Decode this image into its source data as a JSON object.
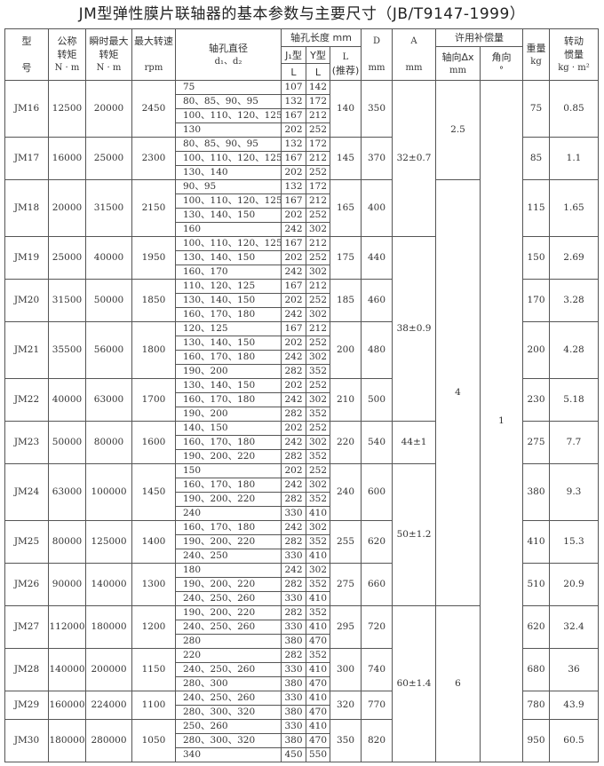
{
  "title": "JM型弹性膜片联轴器的基本参数与主要尺寸（JB/T9147-1999）",
  "header": {
    "model": [
      "型",
      "号"
    ],
    "torque": [
      "公称",
      "转矩",
      "N · m"
    ],
    "peak": [
      "瞬时最大",
      "转矩",
      "N · m"
    ],
    "speed": [
      "最大转速",
      "rpm"
    ],
    "bore": [
      "轴孔直径",
      "d₁、d₂"
    ],
    "length": "轴孔长度 mm",
    "j1": "J₁型",
    "y": "Y型",
    "l": "L",
    "l_rec": [
      "L",
      "(推荐)"
    ],
    "D": [
      "D",
      "mm"
    ],
    "A": [
      "A",
      "mm"
    ],
    "comp": "许用补偿量",
    "axial": [
      "轴向Δx",
      "mm"
    ],
    "angle": [
      "角向",
      "°"
    ],
    "weight": [
      "重量",
      "kg"
    ],
    "inertia": [
      "转动",
      "惯量",
      "kg · m²"
    ]
  },
  "rows": [
    {
      "model": "JM16",
      "torque": "12500",
      "peak": "20000",
      "speed": "2450",
      "D": "140",
      "Dd": "350",
      "weight": "75",
      "inertia": "0.85",
      "bores": [
        [
          "75",
          "107",
          "142"
        ],
        [
          "80、85、90、95",
          "132",
          "172"
        ],
        [
          "100、110、120、125",
          "167",
          "212"
        ],
        [
          "130",
          "202",
          "252"
        ]
      ]
    },
    {
      "model": "JM17",
      "torque": "16000",
      "peak": "25000",
      "speed": "2300",
      "D": "145",
      "Dd": "370",
      "weight": "85",
      "inertia": "1.1",
      "bores": [
        [
          "80、85、90、95",
          "132",
          "172"
        ],
        [
          "100、110、120、125",
          "167",
          "212"
        ],
        [
          "130、140",
          "202",
          "252"
        ]
      ]
    },
    {
      "model": "JM18",
      "torque": "20000",
      "peak": "31500",
      "speed": "2150",
      "D": "165",
      "Dd": "400",
      "weight": "115",
      "inertia": "1.65",
      "bores": [
        [
          "90、95",
          "132",
          "172"
        ],
        [
          "100、110、120、125",
          "167",
          "212"
        ],
        [
          "130、140、150",
          "202",
          "252"
        ],
        [
          "160",
          "242",
          "302"
        ]
      ]
    },
    {
      "model": "JM19",
      "torque": "25000",
      "peak": "40000",
      "speed": "1950",
      "D": "175",
      "Dd": "440",
      "weight": "150",
      "inertia": "2.69",
      "bores": [
        [
          "100、110、120、125",
          "167",
          "212"
        ],
        [
          "130、140、150",
          "202",
          "252"
        ],
        [
          "160、170",
          "242",
          "302"
        ]
      ]
    },
    {
      "model": "JM20",
      "torque": "31500",
      "peak": "50000",
      "speed": "1850",
      "D": "185",
      "Dd": "460",
      "weight": "170",
      "inertia": "3.28",
      "bores": [
        [
          "110、120、125",
          "167",
          "212"
        ],
        [
          "130、140、150",
          "202",
          "252"
        ],
        [
          "160、170、180",
          "242",
          "302"
        ]
      ]
    },
    {
      "model": "JM21",
      "torque": "35500",
      "peak": "56000",
      "speed": "1800",
      "D": "200",
      "Dd": "480",
      "weight": "200",
      "inertia": "4.28",
      "bores": [
        [
          "120、125",
          "167",
          "212"
        ],
        [
          "130、140、150",
          "202",
          "252"
        ],
        [
          "160、170、180",
          "242",
          "302"
        ],
        [
          "190、200",
          "282",
          "352"
        ]
      ]
    },
    {
      "model": "JM22",
      "torque": "40000",
      "peak": "63000",
      "speed": "1700",
      "D": "210",
      "Dd": "500",
      "weight": "230",
      "inertia": "5.18",
      "bores": [
        [
          "130、140、150",
          "202",
          "252"
        ],
        [
          "160、170、180",
          "242",
          "302"
        ],
        [
          "190、200",
          "282",
          "352"
        ]
      ]
    },
    {
      "model": "JM23",
      "torque": "50000",
      "peak": "80000",
      "speed": "1600",
      "D": "220",
      "Dd": "540",
      "weight": "275",
      "inertia": "7.7",
      "bores": [
        [
          "140、150",
          "202",
          "252"
        ],
        [
          "160、170、180",
          "242",
          "302"
        ],
        [
          "190、200、220",
          "282",
          "352"
        ]
      ]
    },
    {
      "model": "JM24",
      "torque": "63000",
      "peak": "100000",
      "speed": "1450",
      "D": "240",
      "Dd": "600",
      "weight": "380",
      "inertia": "9.3",
      "bores": [
        [
          "150",
          "202",
          "252"
        ],
        [
          "160、170、180",
          "242",
          "302"
        ],
        [
          "190、200、220",
          "282",
          "352"
        ],
        [
          "240",
          "330",
          "410"
        ]
      ]
    },
    {
      "model": "JM25",
      "torque": "80000",
      "peak": "125000",
      "speed": "1400",
      "D": "255",
      "Dd": "620",
      "weight": "410",
      "inertia": "15.3",
      "bores": [
        [
          "160、170、180",
          "242",
          "302"
        ],
        [
          "190、200、220",
          "282",
          "352"
        ],
        [
          "240、250",
          "330",
          "410"
        ]
      ]
    },
    {
      "model": "JM26",
      "torque": "90000",
      "peak": "140000",
      "speed": "1300",
      "D": "275",
      "Dd": "660",
      "weight": "510",
      "inertia": "20.9",
      "bores": [
        [
          "180",
          "242",
          "302"
        ],
        [
          "190、200、220",
          "282",
          "352"
        ],
        [
          "240、250、260",
          "330",
          "410"
        ]
      ]
    },
    {
      "model": "JM27",
      "torque": "112000",
      "peak": "180000",
      "speed": "1200",
      "D": "295",
      "Dd": "720",
      "weight": "620",
      "inertia": "32.4",
      "bores": [
        [
          "190、200、220",
          "282",
          "352"
        ],
        [
          "240、250、260",
          "330",
          "410"
        ],
        [
          "280",
          "380",
          "470"
        ]
      ]
    },
    {
      "model": "JM28",
      "torque": "140000",
      "peak": "200000",
      "speed": "1150",
      "D": "300",
      "Dd": "740",
      "weight": "680",
      "inertia": "36",
      "bores": [
        [
          "220",
          "282",
          "352"
        ],
        [
          "240、250、260",
          "330",
          "410"
        ],
        [
          "280、300",
          "380",
          "470"
        ]
      ]
    },
    {
      "model": "JM29",
      "torque": "160000",
      "peak": "224000",
      "speed": "1100",
      "D": "320",
      "Dd": "770",
      "weight": "780",
      "inertia": "43.9",
      "bores": [
        [
          "240、250、260",
          "330",
          "410"
        ],
        [
          "280、300、320",
          "380",
          "470"
        ]
      ]
    },
    {
      "model": "JM30",
      "torque": "180000",
      "peak": "280000",
      "speed": "1050",
      "D": "350",
      "Dd": "820",
      "weight": "950",
      "inertia": "60.5",
      "bores": [
        [
          "250、260",
          "330",
          "410"
        ],
        [
          "280、300、320",
          "380",
          "470"
        ],
        [
          "340",
          "450",
          "550"
        ]
      ]
    }
  ],
  "A_groups": [
    {
      "value": "32±0.7",
      "from": 0,
      "count": 3
    },
    {
      "value": "38±0.9",
      "from": 3,
      "count": 4
    },
    {
      "value": "44±1",
      "from": 7,
      "count": 1
    },
    {
      "value": "50±1.2",
      "from": 8,
      "count": 3
    },
    {
      "value": "60±1.4",
      "from": 11,
      "count": 4
    }
  ],
  "axial_groups": [
    {
      "value": "2.5",
      "from": 0,
      "count": 2
    },
    {
      "value": "4",
      "from": 2,
      "count": 9
    },
    {
      "value": "6",
      "from": 11,
      "count": 4
    }
  ],
  "angle_groups": [
    {
      "value": "1",
      "from": 0,
      "count": 15
    }
  ]
}
